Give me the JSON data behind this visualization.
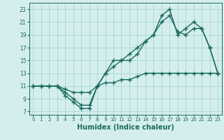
{
  "xlabel": "Humidex (Indice chaleur)",
  "bg_color": "#d4eeee",
  "grid_color": "#aad4d4",
  "line_color": "#1a6b5e",
  "xlim": [
    -0.5,
    23.5
  ],
  "ylim": [
    6.5,
    24.0
  ],
  "xticks": [
    0,
    1,
    2,
    3,
    4,
    5,
    6,
    7,
    8,
    9,
    10,
    11,
    12,
    13,
    14,
    15,
    16,
    17,
    18,
    19,
    20,
    21,
    22,
    23
  ],
  "yticks": [
    7,
    9,
    11,
    13,
    15,
    17,
    19,
    21,
    23
  ],
  "line1_x": [
    0,
    1,
    2,
    3,
    4,
    5,
    6,
    7,
    8,
    9,
    10,
    11,
    12,
    13,
    14,
    15,
    16,
    17,
    18,
    19,
    20,
    21,
    22,
    23
  ],
  "line1_y": [
    11,
    11,
    11,
    11,
    10.5,
    10,
    10,
    10,
    11,
    11.5,
    11.5,
    12,
    12,
    12.5,
    13,
    13,
    13,
    13,
    13,
    13,
    13,
    13,
    13,
    13
  ],
  "line2_x": [
    0,
    1,
    2,
    3,
    4,
    5,
    6,
    7,
    8,
    9,
    10,
    11,
    12,
    13,
    14,
    15,
    16,
    17,
    18,
    19,
    20,
    21,
    22,
    23
  ],
  "line2_y": [
    11,
    11,
    11,
    11,
    9.5,
    8.5,
    7.5,
    7.5,
    11,
    13,
    14,
    15,
    15,
    16,
    18,
    19,
    21,
    22,
    19.5,
    19,
    20,
    20,
    17,
    13
  ],
  "line3_x": [
    0,
    1,
    2,
    3,
    4,
    5,
    6,
    7,
    8,
    9,
    10,
    11,
    12,
    13,
    14,
    15,
    16,
    17,
    18,
    19,
    20,
    21,
    22,
    23
  ],
  "line3_y": [
    11,
    11,
    11,
    11,
    10,
    9,
    8,
    8,
    11,
    13,
    15,
    15,
    16,
    17,
    18,
    19,
    22,
    23,
    19,
    20,
    21,
    20,
    17,
    13
  ],
  "marker": "+",
  "markersize": 4,
  "linewidth": 1.0
}
